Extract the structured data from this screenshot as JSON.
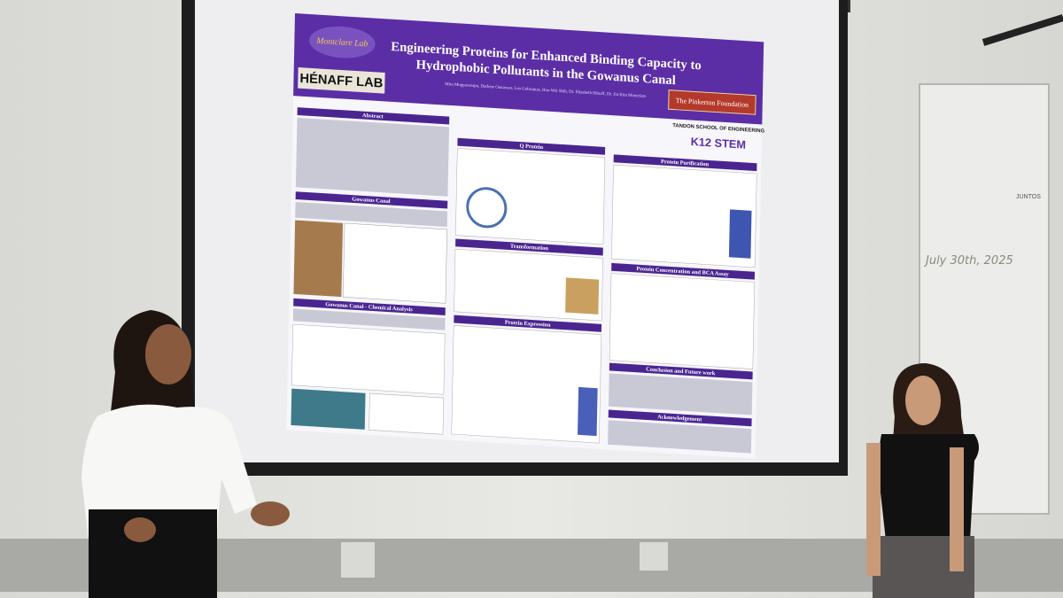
{
  "poster": {
    "title_lines": [
      "Engineering Proteins for Enhanced Binding Capacity to",
      "Hydrophobic Pollutants in the Gowanus Canal"
    ],
    "authors": "Mira Muppavarapu, Darlene Ounawan, Leo Gobrumas, Hao-Wei Shih, Dr. Elizabeth Hénaff, Dr. Jin Kim Montclare",
    "lab": "HÉNAFF LAB",
    "group": "Montclare Lab",
    "sponsor": "The Pinkerton Foundation",
    "school": "TANDON SCHOOL OF ENGINEERING",
    "program": "K12 STEM",
    "sections": [
      "Abstract",
      "Gowanus Canal",
      "Gowanus Canal - Chemical Analysis",
      "Q Protein",
      "Transformation",
      "Protein Expression",
      "Protein Purification",
      "Protein Concentration and BCA Assay",
      "Conclusion and Future work",
      "Acknowledgement"
    ]
  },
  "whiteboard": {
    "date": "July 30th, 2025",
    "sign": "JUNTOS"
  }
}
